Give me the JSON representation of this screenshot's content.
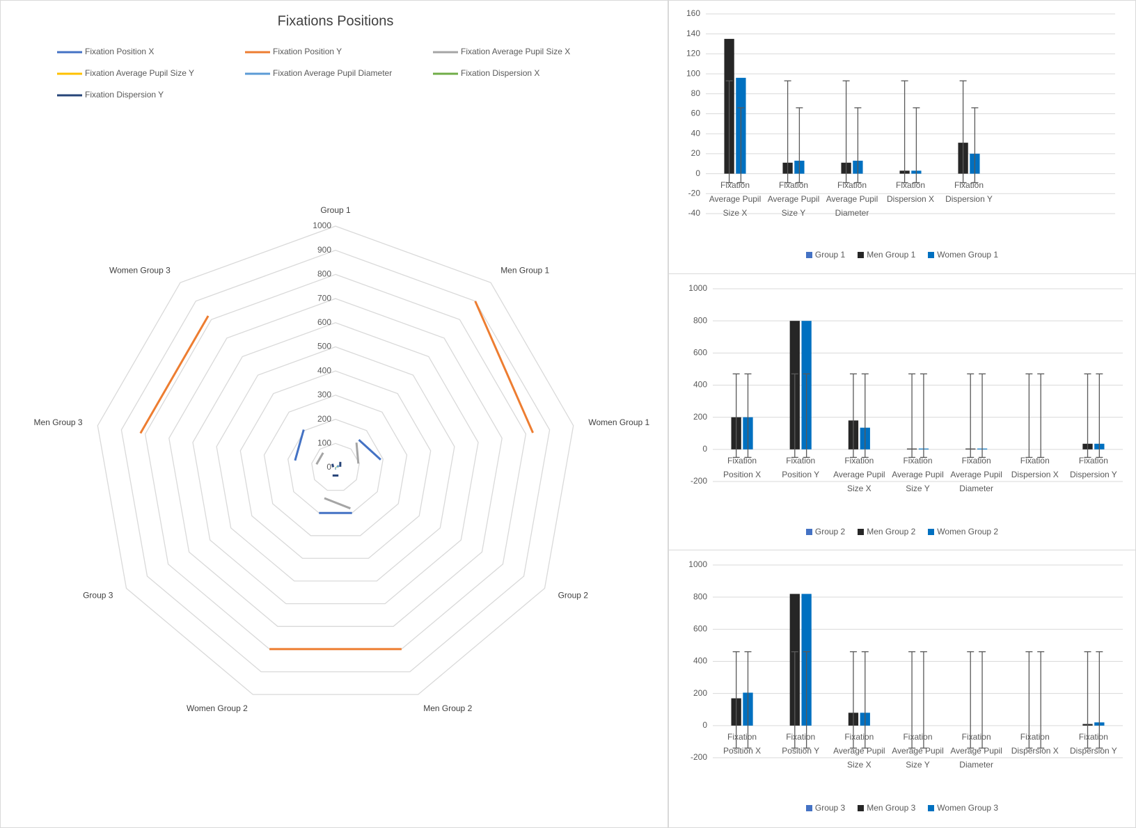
{
  "chart_data": [
    {
      "type": "radar",
      "title": "Fixations Positions",
      "categories": [
        "Group 1",
        "Men Group 1",
        "Women Group 1",
        "Group 2",
        "Men Group 2",
        "Women Group 2",
        "Group 3",
        "Men Group 3",
        "Women Group 3"
      ],
      "rlim": [
        0,
        1000
      ],
      "rticks": [
        0,
        100,
        200,
        300,
        400,
        500,
        600,
        700,
        800,
        900,
        1000
      ],
      "grid": true,
      "series": [
        {
          "name": "Fixation Position X",
          "color": "#4472c4",
          "values": [
            null,
            150,
            190,
            null,
            200,
            200,
            null,
            170,
            205
          ]
        },
        {
          "name": "Fixation Position Y",
          "color": "#ed7d31",
          "values": [
            null,
            900,
            830,
            null,
            800,
            800,
            null,
            820,
            820
          ]
        },
        {
          "name": "Fixation Average Pupil Size X",
          "color": "#a5a5a5",
          "values": [
            null,
            135,
            96,
            null,
            180,
            135,
            null,
            80,
            80
          ]
        },
        {
          "name": "Fixation Average Pupil Size Y",
          "color": "#ffc000",
          "values": [
            null,
            11,
            13,
            null,
            5,
            5,
            null,
            0,
            0
          ]
        },
        {
          "name": "Fixation Average Pupil Diameter",
          "color": "#5b9bd5",
          "values": [
            null,
            11,
            13,
            null,
            5,
            5,
            null,
            0,
            0
          ]
        },
        {
          "name": "Fixation Dispersion X",
          "color": "#70ad47",
          "values": [
            null,
            3,
            3,
            null,
            0,
            0,
            null,
            0,
            0
          ]
        },
        {
          "name": "Fixation Dispersion Y",
          "color": "#264478",
          "values": [
            null,
            31,
            20,
            null,
            35,
            35,
            null,
            10,
            20
          ]
        }
      ]
    },
    {
      "type": "bar",
      "categories": [
        "Fixation Average Pupil Size X",
        "Fixation Average Pupil Size Y",
        "Fixation Average Pupil Diameter",
        "Fixation Dispersion X",
        "Fixation Dispersion Y",
        null,
        null
      ],
      "ylim": [
        -40,
        160
      ],
      "yticks": [
        -40,
        -20,
        0,
        20,
        40,
        60,
        80,
        100,
        120,
        140,
        160
      ],
      "grid": true,
      "series": [
        {
          "name": "Group 1",
          "color": "#4472c4",
          "values": [
            null,
            null,
            null,
            null,
            null,
            null,
            null
          ]
        },
        {
          "name": "Men Group 1",
          "color": "#262626",
          "values": [
            135,
            11,
            11,
            3,
            31,
            null,
            null
          ],
          "error_low": [
            -9,
            -9,
            -9,
            -9,
            -9,
            null,
            null
          ],
          "error_high": [
            93,
            93,
            93,
            93,
            93,
            null,
            null
          ]
        },
        {
          "name": "Women Group 1",
          "color": "#0070c0",
          "values": [
            96,
            13,
            13,
            3,
            20,
            null,
            null
          ],
          "error_low": [
            -9,
            -9,
            -9,
            -9,
            -9,
            null,
            null
          ],
          "error_high": [
            66,
            66,
            66,
            66,
            66,
            null,
            null
          ]
        }
      ]
    },
    {
      "type": "bar",
      "categories": [
        "Fixation Position X",
        "Fixation Position Y",
        "Fixation Average Pupil Size X",
        "Fixation Average Pupil Size Y",
        "Fixation Average Pupil Diameter",
        "Fixation Dispersion X",
        "Fixation Dispersion Y"
      ],
      "ylim": [
        -200,
        1000
      ],
      "yticks": [
        -200,
        0,
        200,
        400,
        600,
        800,
        1000
      ],
      "grid": true,
      "series": [
        {
          "name": "Group 2",
          "color": "#4472c4",
          "values": [
            null,
            null,
            null,
            null,
            null,
            null,
            null
          ]
        },
        {
          "name": "Men Group 2",
          "color": "#262626",
          "values": [
            200,
            800,
            180,
            5,
            5,
            0,
            35
          ],
          "error_low": [
            -50,
            -50,
            -50,
            -50,
            -50,
            -50,
            -50
          ],
          "error_high": [
            470,
            470,
            470,
            470,
            470,
            470,
            470
          ]
        },
        {
          "name": "Women Group 2",
          "color": "#0070c0",
          "values": [
            200,
            800,
            135,
            5,
            5,
            0,
            35
          ],
          "error_low": [
            -50,
            -50,
            -50,
            -50,
            -50,
            -50,
            -50
          ],
          "error_high": [
            470,
            470,
            470,
            470,
            470,
            470,
            470
          ]
        }
      ]
    },
    {
      "type": "bar",
      "categories": [
        "Fixation Position X",
        "Fixation Position Y",
        "Fixation Average Pupil Size X",
        "Fixation Average Pupil Size Y",
        "Fixation Average Pupil Diameter",
        "Fixation Dispersion X",
        "Fixation Dispersion Y"
      ],
      "ylim": [
        -200,
        1000
      ],
      "yticks": [
        -200,
        0,
        200,
        400,
        600,
        800,
        1000
      ],
      "grid": true,
      "series": [
        {
          "name": "Group 3",
          "color": "#4472c4",
          "values": [
            null,
            null,
            null,
            null,
            null,
            null,
            null
          ]
        },
        {
          "name": "Men Group 3",
          "color": "#262626",
          "values": [
            170,
            820,
            80,
            0,
            0,
            0,
            10
          ],
          "error_low": [
            -140,
            -140,
            -140,
            -140,
            -140,
            -140,
            -140
          ],
          "error_high": [
            460,
            460,
            460,
            460,
            460,
            460,
            460
          ]
        },
        {
          "name": "Women Group 3",
          "color": "#0070c0",
          "values": [
            205,
            820,
            80,
            0,
            0,
            0,
            20
          ],
          "error_low": [
            -140,
            -140,
            -140,
            -140,
            -140,
            -140,
            -140
          ],
          "error_high": [
            460,
            460,
            460,
            460,
            460,
            460,
            460
          ]
        }
      ]
    }
  ]
}
